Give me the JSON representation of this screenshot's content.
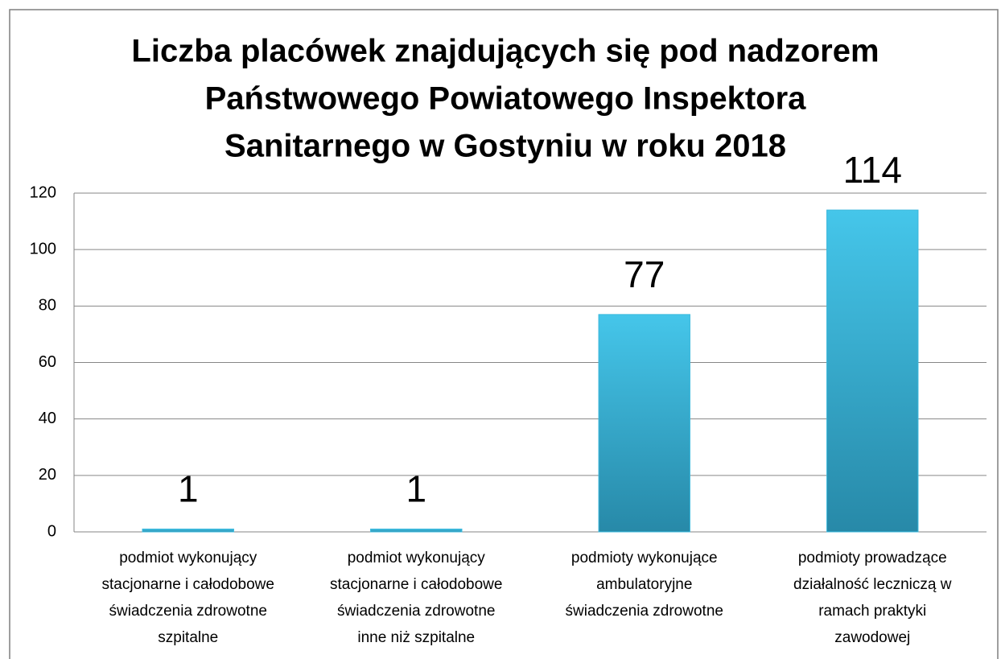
{
  "chart_data": {
    "type": "bar",
    "title": [
      "Liczba placówek znajdujących się pod nadzorem",
      "Państwowego Powiatowego Inspektora",
      "Sanitarnego w Gostyniu w roku 2018"
    ],
    "categories": [
      [
        "podmiot wykonujący",
        "stacjonarne i całodobowe",
        "świadczenia zdrowotne",
        "szpitalne"
      ],
      [
        "podmiot wykonujący",
        "stacjonarne i całodobowe",
        "świadczenia  zdrowotne",
        "inne niż szpitalne"
      ],
      [
        "podmioty wykonujące",
        "ambulatoryjne",
        "świadczenia zdrowotne"
      ],
      [
        "podmioty prowadzące",
        "działalność leczniczą  w",
        "ramach praktyki",
        "zawodowej"
      ]
    ],
    "values": [
      1,
      1,
      77,
      114
    ],
    "color": "#3ab8dc",
    "ylim": [
      0,
      120
    ],
    "yticks": [
      0,
      20,
      40,
      60,
      80,
      100,
      120
    ],
    "grid": true
  }
}
